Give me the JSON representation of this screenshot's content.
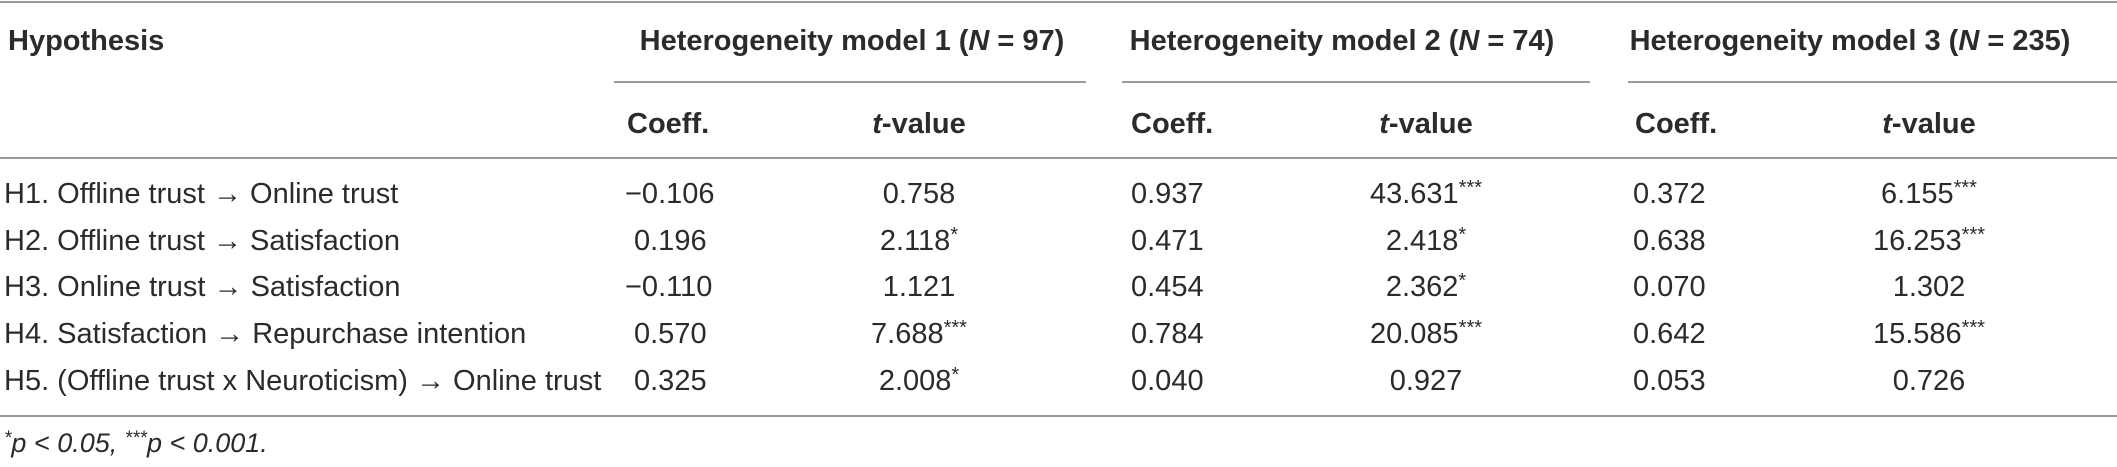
{
  "table": {
    "header": {
      "hypothesis": "Hypothesis",
      "models": [
        {
          "prefix": "Heterogeneity model 1 (",
          "n_label": "N",
          "n_value": " = 97)"
        },
        {
          "prefix": "Heterogeneity model 2 (",
          "n_label": "N",
          "n_value": " = 74)"
        },
        {
          "prefix": "Heterogeneity model 3 (",
          "n_label": "N",
          "n_value": " = 235)"
        }
      ],
      "coeff": "Coeff.",
      "t_italic": "t",
      "t_rest": "-value"
    },
    "rows": [
      {
        "hypothesis": "H1. Offline trust → Online trust",
        "cells": [
          {
            "coeff": "−0.106",
            "t": "0.758",
            "sig": ""
          },
          {
            "coeff": "0.937",
            "t": "43.631",
            "sig": "***"
          },
          {
            "coeff": "0.372",
            "t": "6.155",
            "sig": "***"
          }
        ]
      },
      {
        "hypothesis": "H2. Offline trust → Satisfaction",
        "cells": [
          {
            "coeff": "0.196",
            "t": "2.118",
            "sig": "*"
          },
          {
            "coeff": "0.471",
            "t": "2.418",
            "sig": "*"
          },
          {
            "coeff": "0.638",
            "t": "16.253",
            "sig": "***"
          }
        ]
      },
      {
        "hypothesis": "H3. Online trust → Satisfaction",
        "cells": [
          {
            "coeff": "−0.110",
            "t": "1.121",
            "sig": ""
          },
          {
            "coeff": "0.454",
            "t": "2.362",
            "sig": "*"
          },
          {
            "coeff": "0.070",
            "t": "1.302",
            "sig": ""
          }
        ]
      },
      {
        "hypothesis": "H4. Satisfaction → Repurchase intention",
        "cells": [
          {
            "coeff": "0.570",
            "t": "7.688",
            "sig": "***"
          },
          {
            "coeff": "0.784",
            "t": "20.085",
            "sig": "***"
          },
          {
            "coeff": "0.642",
            "t": "15.586",
            "sig": "***"
          }
        ]
      },
      {
        "hypothesis": "H5. (Offline trust x Neuroticism) → Online trust",
        "cells": [
          {
            "coeff": "0.325",
            "t": "2.008",
            "sig": "*"
          },
          {
            "coeff": "0.040",
            "t": "0.927",
            "sig": ""
          },
          {
            "coeff": "0.053",
            "t": "0.726",
            "sig": ""
          }
        ]
      }
    ],
    "footnote": {
      "sig1": "*",
      "text1": "p < 0.05, ",
      "sig2": "***",
      "text2": "p < 0.001."
    }
  }
}
